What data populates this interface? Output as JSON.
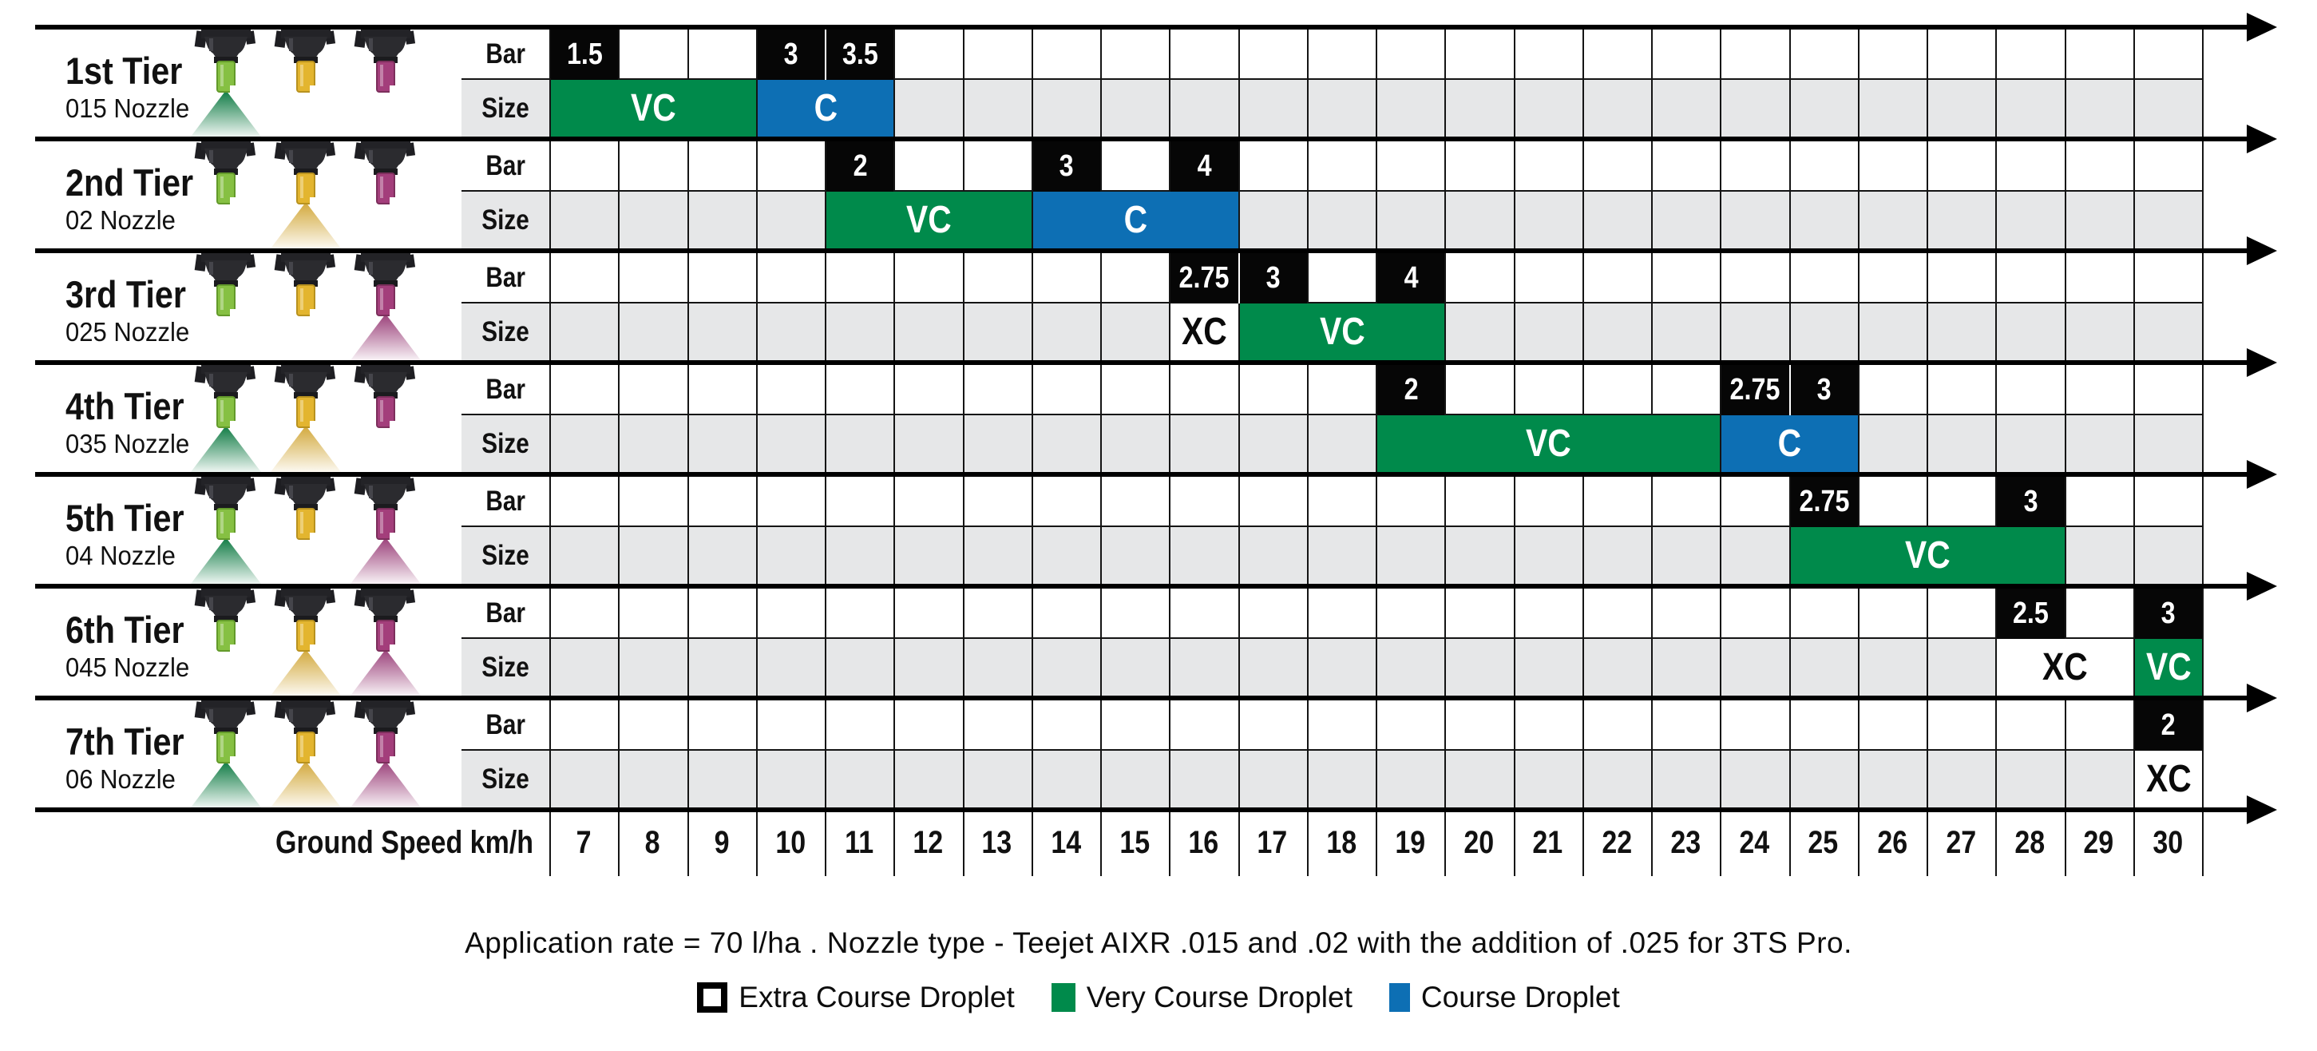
{
  "chart_data": {
    "type": "table",
    "x_axis": {
      "label": "Ground Speed km/h",
      "min": 7,
      "max": 30,
      "step": 1
    },
    "row_labels": {
      "bar": "Bar",
      "size": "Size"
    },
    "tiers": [
      {
        "label": "1st Tier",
        "nozzle": "015 Nozzle",
        "active_cones": [
          "green"
        ],
        "bar": [
          {
            "speed": 7,
            "value": "1.5"
          },
          {
            "speed": 10,
            "value": "3"
          },
          {
            "speed": 11,
            "value": "3.5"
          }
        ],
        "size": [
          {
            "from": 7,
            "to": 9,
            "droplet": "VC"
          },
          {
            "from": 10,
            "to": 11,
            "droplet": "C"
          }
        ]
      },
      {
        "label": "2nd Tier",
        "nozzle": "02 Nozzle",
        "active_cones": [
          "yellow"
        ],
        "bar": [
          {
            "speed": 11,
            "value": "2"
          },
          {
            "speed": 14,
            "value": "3"
          },
          {
            "speed": 16,
            "value": "4"
          }
        ],
        "size": [
          {
            "from": 11,
            "to": 13,
            "droplet": "VC"
          },
          {
            "from": 14,
            "to": 16,
            "droplet": "C"
          }
        ]
      },
      {
        "label": "3rd Tier",
        "nozzle": "025 Nozzle",
        "active_cones": [
          "magenta"
        ],
        "bar": [
          {
            "speed": 16,
            "value": "2.75"
          },
          {
            "speed": 17,
            "value": "3"
          },
          {
            "speed": 19,
            "value": "4"
          }
        ],
        "size": [
          {
            "from": 16,
            "to": 16,
            "droplet": "XC"
          },
          {
            "from": 17,
            "to": 19,
            "droplet": "VC"
          }
        ]
      },
      {
        "label": "4th Tier",
        "nozzle": "035 Nozzle",
        "active_cones": [
          "green",
          "yellow"
        ],
        "bar": [
          {
            "speed": 19,
            "value": "2"
          },
          {
            "speed": 24,
            "value": "2.75"
          },
          {
            "speed": 25,
            "value": "3"
          }
        ],
        "size": [
          {
            "from": 19,
            "to": 23,
            "droplet": "VC"
          },
          {
            "from": 24,
            "to": 25,
            "droplet": "C"
          }
        ]
      },
      {
        "label": "5th Tier",
        "nozzle": "04 Nozzle",
        "active_cones": [
          "green",
          "magenta"
        ],
        "bar": [
          {
            "speed": 25,
            "value": "2.75"
          },
          {
            "speed": 28,
            "value": "3"
          }
        ],
        "size": [
          {
            "from": 25,
            "to": 28,
            "droplet": "VC"
          }
        ]
      },
      {
        "label": "6th Tier",
        "nozzle": "045 Nozzle",
        "active_cones": [
          "yellow",
          "magenta"
        ],
        "bar": [
          {
            "speed": 28,
            "value": "2.5"
          },
          {
            "speed": 30,
            "value": "3"
          }
        ],
        "size": [
          {
            "from": 28,
            "to": 29,
            "droplet": "XC"
          },
          {
            "from": 30,
            "to": 30,
            "droplet": "VC"
          }
        ]
      },
      {
        "label": "7th Tier",
        "nozzle": "06 Nozzle",
        "active_cones": [
          "green",
          "yellow",
          "magenta"
        ],
        "bar": [
          {
            "speed": 30,
            "value": "2"
          }
        ],
        "size": [
          {
            "from": 30,
            "to": 30,
            "droplet": "XC"
          }
        ]
      }
    ],
    "droplet_classes": {
      "XC": "Extra Course Droplet",
      "VC": "Very Course Droplet",
      "C": "Course Droplet"
    }
  },
  "axis_label": "Ground Speed km/h",
  "caption": "Application rate = 70 l/ha . Nozzle type - Teejet AIXR .015 and .02 with the addition of .025 for 3TS Pro.",
  "legend": [
    {
      "droplet": "XC",
      "label": "Extra Course Droplet"
    },
    {
      "droplet": "VC",
      "label": "Very Course Droplet"
    },
    {
      "droplet": "C",
      "label": "Course Droplet"
    }
  ],
  "colors": {
    "vc_green": "#008A4B",
    "c_blue": "#0D6FB4",
    "cell_black": "#060606",
    "size_row_gray": "#E6E7E8",
    "nozzle_lime": "#86C043",
    "nozzle_yellow": "#E3B52F",
    "nozzle_magenta": "#A33E7B",
    "cone_green": "#0E7A43",
    "cone_yellow": "#D2A83B",
    "cone_magenta": "#9A4079"
  }
}
